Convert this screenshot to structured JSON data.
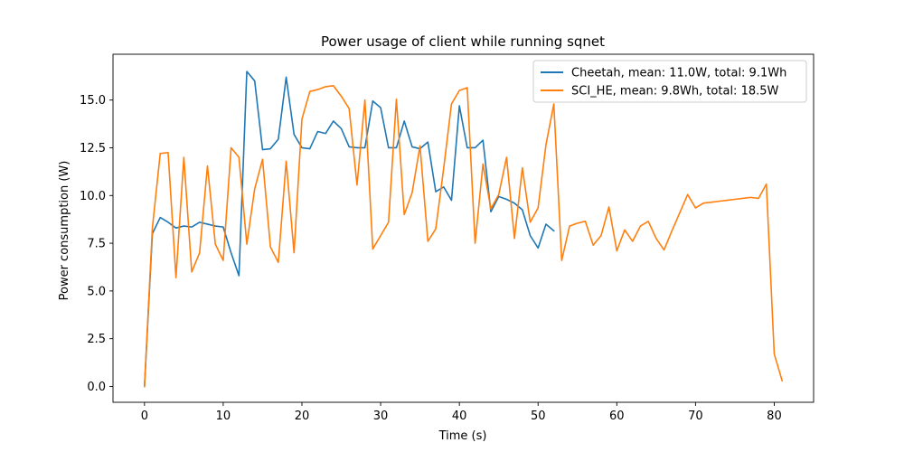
{
  "chart_data": {
    "type": "line",
    "title": "Power usage of client while running sqnet",
    "xlabel": "Time (s)",
    "ylabel": "Power consumption (W)",
    "xlim": [
      -4,
      85
    ],
    "ylim": [
      -0.83,
      17.4
    ],
    "xticks": [
      0,
      10,
      20,
      30,
      40,
      50,
      60,
      70,
      80
    ],
    "xtick_labels": [
      "0",
      "10",
      "20",
      "30",
      "40",
      "50",
      "60",
      "70",
      "80"
    ],
    "yticks": [
      0.0,
      2.5,
      5.0,
      7.5,
      10.0,
      12.5,
      15.0
    ],
    "ytick_labels": [
      "0.0",
      "2.5",
      "5.0",
      "7.5",
      "10.0",
      "12.5",
      "15.0"
    ],
    "grid": false,
    "legend_position": "top-right",
    "series": [
      {
        "name": "Cheetah, mean: 11.0W, total: 9.1Wh",
        "color": "#1f77b4",
        "x": [
          0,
          1,
          2,
          3,
          4,
          5,
          6,
          7,
          8,
          9,
          10,
          11,
          12,
          13,
          14,
          15,
          16,
          17,
          18,
          19,
          20,
          21,
          22,
          23,
          24,
          25,
          26,
          27,
          28,
          29,
          30,
          31,
          32,
          33,
          34,
          35,
          36,
          37,
          38,
          39,
          40,
          41,
          42,
          43,
          44,
          45,
          46,
          47,
          48,
          49,
          50,
          51,
          52
        ],
        "y": [
          0.0,
          8.0,
          8.85,
          8.6,
          8.3,
          8.4,
          8.35,
          8.6,
          8.5,
          8.4,
          8.35,
          7.0,
          5.8,
          16.5,
          16.0,
          12.4,
          12.45,
          12.95,
          16.2,
          13.2,
          12.5,
          12.45,
          13.35,
          13.25,
          13.9,
          13.5,
          12.55,
          12.5,
          12.5,
          14.95,
          14.6,
          12.5,
          12.5,
          13.9,
          12.55,
          12.45,
          12.8,
          10.2,
          10.45,
          9.75,
          14.7,
          12.5,
          12.5,
          12.9,
          9.15,
          9.95,
          9.8,
          9.6,
          9.25,
          7.9,
          7.25,
          8.5,
          8.15
        ]
      },
      {
        "name": "SCI_HE, mean: 9.8Wh, total: 18.5W",
        "color": "#ff7f0e",
        "x": [
          0,
          1,
          2,
          3,
          4,
          5,
          6,
          7,
          8,
          9,
          10,
          11,
          12,
          13,
          14,
          15,
          16,
          17,
          18,
          19,
          20,
          21,
          22,
          23,
          24,
          25,
          26,
          27,
          28,
          29,
          30,
          31,
          32,
          33,
          34,
          35,
          36,
          37,
          38,
          39,
          40,
          41,
          42,
          43,
          44,
          45,
          46,
          47,
          48,
          49,
          50,
          51,
          52,
          53,
          54,
          55,
          56,
          57,
          58,
          59,
          60,
          61,
          62,
          63,
          64,
          65,
          66,
          67,
          68,
          69,
          70,
          71,
          72,
          73,
          74,
          75,
          76,
          77,
          78,
          79,
          80,
          81
        ],
        "y": [
          0.0,
          8.3,
          12.2,
          12.25,
          5.7,
          12.0,
          6.0,
          7.0,
          11.55,
          7.45,
          6.6,
          12.5,
          12.0,
          7.45,
          10.35,
          11.9,
          7.3,
          6.5,
          11.8,
          7.0,
          14.0,
          15.45,
          15.55,
          15.7,
          15.75,
          15.2,
          14.55,
          10.55,
          15.0,
          7.2,
          7.9,
          8.6,
          15.05,
          9.0,
          10.15,
          12.6,
          7.6,
          8.25,
          11.4,
          14.8,
          15.5,
          15.65,
          7.5,
          11.65,
          9.3,
          10.05,
          12.0,
          7.75,
          11.45,
          8.6,
          9.35,
          12.65,
          14.8,
          6.6,
          8.4,
          8.55,
          8.65,
          7.4,
          7.9,
          9.4,
          7.1,
          8.2,
          7.6,
          8.4,
          8.65,
          7.75,
          7.15,
          8.15,
          9.1,
          10.05,
          9.35,
          9.6,
          9.65,
          9.7,
          9.75,
          9.8,
          9.85,
          9.9,
          9.85,
          10.6,
          1.7,
          0.3
        ]
      }
    ]
  }
}
